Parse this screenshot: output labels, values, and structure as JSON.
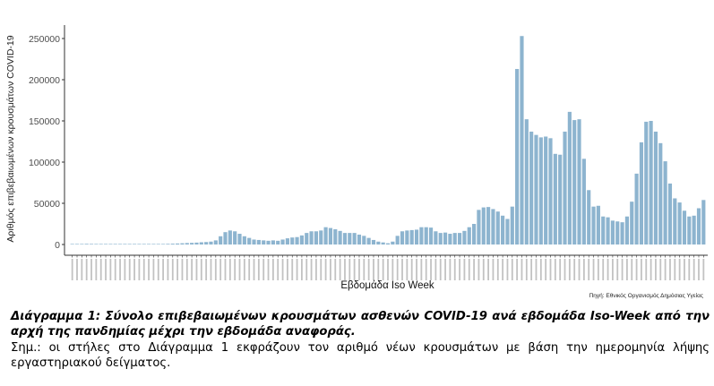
{
  "chart_data": {
    "type": "bar",
    "title": "",
    "xlabel": "Εβδομάδα Iso Week",
    "ylabel": "Αριθμός επιβεβαιωμένων κρουσμάτων COVID-19",
    "ylim": [
      0,
      260000
    ],
    "yticks": [
      0,
      50000,
      100000,
      150000,
      200000,
      250000
    ],
    "ytick_labels": [
      "0",
      "50000",
      "100000",
      "150000",
      "200000",
      "250000"
    ],
    "grid": false,
    "legend": null,
    "bar_color": "#8db4cf",
    "source_note": "Πηγή: Εθνικός Οργανισμός Δημόσιας Υγείας",
    "x_note": "Weekly Iso-Week categories from start of pandemic (tick labels too small to read)",
    "values": [
      100,
      300,
      600,
      800,
      700,
      500,
      400,
      200,
      100,
      100,
      100,
      100,
      100,
      100,
      100,
      200,
      200,
      300,
      400,
      500,
      800,
      1000,
      1200,
      1500,
      1800,
      2000,
      2300,
      2700,
      3000,
      3500,
      5000,
      10000,
      15000,
      17000,
      16000,
      13000,
      10000,
      8000,
      6000,
      5500,
      5000,
      4500,
      5000,
      4500,
      6000,
      7500,
      8500,
      9000,
      11000,
      14000,
      16000,
      16000,
      17000,
      21000,
      20000,
      18500,
      16500,
      14000,
      14000,
      14000,
      12000,
      10500,
      8000,
      5500,
      3500,
      2500,
      1500,
      3500,
      10500,
      16000,
      17000,
      17500,
      18000,
      21000,
      21000,
      20500,
      16000,
      14000,
      14500,
      13000,
      14000,
      14000,
      16500,
      21000,
      25000,
      42000,
      45000,
      45500,
      43000,
      40000,
      35000,
      31000,
      46000,
      213000,
      253000,
      152000,
      137000,
      133000,
      130000,
      131000,
      129000,
      110000,
      109000,
      137000,
      161000,
      151000,
      152000,
      104000,
      66000,
      46000,
      47000,
      34000,
      33000,
      29000,
      28000,
      27000,
      34000,
      52000,
      86000,
      124000,
      149000,
      150000,
      137000,
      123000,
      101000,
      74000,
      56000,
      51000,
      41000,
      34000,
      35000,
      44000,
      54000
    ]
  },
  "axis": {
    "xlabel": "Εβδομάδα Iso Week",
    "ylabel": "Αριθμός επιβεβαιωμένων κρουσμάτων COVID-19",
    "source": "Πηγή: Εθνικός Οργανισμός Δημόσιας Υγείας"
  },
  "caption": {
    "title": "Διάγραμμα 1:  Σύνολο επιβεβαιωμένων κρουσμάτων ασθενών COVID-19 ανά εβδομάδα Iso-Week από την αρχή της πανδημίας μέχρι την εβδομάδα αναφοράς.",
    "note": "Σημ.:  οι στήλες στο Διάγραμμα 1 εκφράζουν τον αριθμό νέων κρουσμάτων με βάση την ημερομηνία λήψης εργαστηριακού δείγματος."
  }
}
